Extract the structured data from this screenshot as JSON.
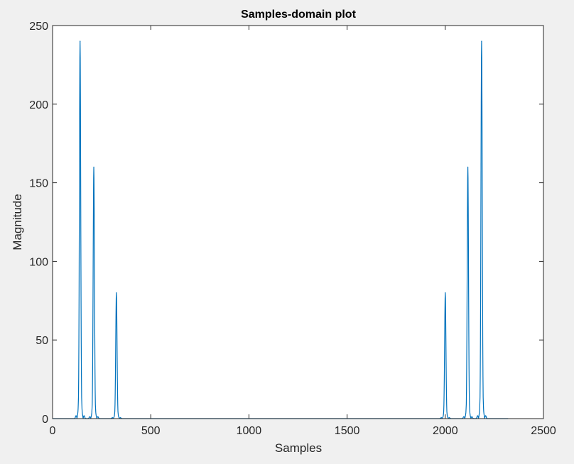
{
  "chart_data": {
    "type": "line",
    "title": "Samples-domain plot",
    "xlabel": "Samples",
    "ylabel": "Magnitude",
    "xlim": [
      0,
      2500
    ],
    "ylim": [
      0,
      250
    ],
    "xticks": [
      0,
      500,
      1000,
      1500,
      2000,
      2500
    ],
    "yticks": [
      0,
      50,
      100,
      150,
      200,
      250
    ],
    "x_tick_labels": [
      "0",
      "500",
      "1000",
      "1500",
      "2000",
      "2500"
    ],
    "y_tick_labels": [
      "0",
      "50",
      "100",
      "150",
      "200",
      "250"
    ],
    "grid": false,
    "legend": "none",
    "series": [
      {
        "color": "#0072bd",
        "x_range": [
          0,
          2320
        ],
        "peaks": [
          {
            "x": 140,
            "y": 240
          },
          {
            "x": 210,
            "y": 160
          },
          {
            "x": 325,
            "y": 80
          },
          {
            "x": 2000,
            "y": 80
          },
          {
            "x": 2115,
            "y": 160
          },
          {
            "x": 2185,
            "y": 240
          }
        ]
      }
    ]
  }
}
